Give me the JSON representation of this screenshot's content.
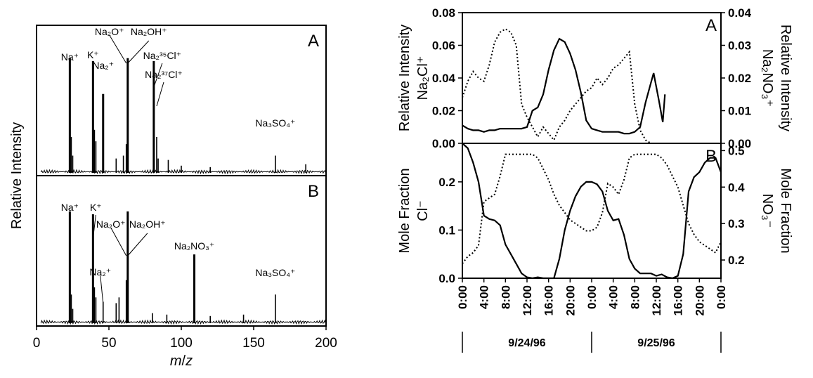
{
  "chart_data": [
    {
      "type": "line",
      "subtype": "mass-spectrum",
      "panels": [
        {
          "letter": "A",
          "peaks": [
            {
              "x": 23,
              "y": 0.8
            },
            {
              "x": 24,
              "y": 0.25
            },
            {
              "x": 25,
              "y": 0.12
            },
            {
              "x": 39,
              "y": 0.78
            },
            {
              "x": 40,
              "y": 0.3
            },
            {
              "x": 41,
              "y": 0.22
            },
            {
              "x": 46,
              "y": 0.55
            },
            {
              "x": 55,
              "y": 0.1
            },
            {
              "x": 60,
              "y": 0.12
            },
            {
              "x": 62,
              "y": 0.2
            },
            {
              "x": 63,
              "y": 0.8
            },
            {
              "x": 81,
              "y": 0.78
            },
            {
              "x": 83,
              "y": 0.25
            },
            {
              "x": 84,
              "y": 0.1
            },
            {
              "x": 91,
              "y": 0.09
            },
            {
              "x": 100,
              "y": 0.05
            },
            {
              "x": 120,
              "y": 0.04
            },
            {
              "x": 165,
              "y": 0.12
            },
            {
              "x": 186,
              "y": 0.06
            }
          ],
          "labels": [
            {
              "text": "Na⁺",
              "x": 23
            },
            {
              "text": "K⁺",
              "x": 39
            },
            {
              "text": "Na₂⁺",
              "x": 46
            },
            {
              "text": "Na₂O⁺",
              "x": 62
            },
            {
              "text": "Na₂OH⁺",
              "x": 63
            },
            {
              "text": "Na₂³⁵Cl⁺",
              "x": 81
            },
            {
              "text": "Na₂³⁷Cl⁺",
              "x": 83
            },
            {
              "text": "Na₃SO₄⁺",
              "x": 165
            }
          ]
        },
        {
          "letter": "B",
          "peaks": [
            {
              "x": 23,
              "y": 0.78
            },
            {
              "x": 24,
              "y": 0.2
            },
            {
              "x": 25,
              "y": 0.1
            },
            {
              "x": 39,
              "y": 0.76
            },
            {
              "x": 40,
              "y": 0.25
            },
            {
              "x": 41,
              "y": 0.18
            },
            {
              "x": 46,
              "y": 0.15
            },
            {
              "x": 55,
              "y": 0.14
            },
            {
              "x": 57,
              "y": 0.18
            },
            {
              "x": 62,
              "y": 0.3
            },
            {
              "x": 63,
              "y": 0.78
            },
            {
              "x": 80,
              "y": 0.07
            },
            {
              "x": 90,
              "y": 0.06
            },
            {
              "x": 109,
              "y": 0.48
            },
            {
              "x": 120,
              "y": 0.05
            },
            {
              "x": 143,
              "y": 0.06
            },
            {
              "x": 165,
              "y": 0.2
            }
          ],
          "labels": [
            {
              "text": "Na⁺",
              "x": 23
            },
            {
              "text": "K⁺",
              "x": 39
            },
            {
              "text": "Na₂O⁺",
              "x": 62
            },
            {
              "text": "Na₂OH⁺",
              "x": 63
            },
            {
              "text": "Na₂⁺",
              "x": 46
            },
            {
              "text": "Na₂NO₃⁺",
              "x": 109
            },
            {
              "text": "Na₃SO₄⁺",
              "x": 165
            }
          ]
        }
      ],
      "ylabel": "Relative Intensity",
      "xlim": [
        0,
        200
      ],
      "xticks": [
        "0",
        "50",
        "100",
        "150",
        "200"
      ],
      "xlabel_main": "m",
      "xlabel_sep": "/",
      "xlabel_end": "z"
    },
    {
      "type": "line",
      "subtype": "time-series",
      "x_unit": "hours since 0:00 on 9/24/96",
      "xlim": [
        0,
        48
      ],
      "xticks": [
        "0:00",
        "4:00",
        "8:00",
        "12:00",
        "16:00",
        "20:00",
        "0:00",
        "4:00",
        "8:00",
        "12:00",
        "16:00",
        "20:00",
        "0:00"
      ],
      "dates": [
        "9/24/96",
        "9/25/96"
      ],
      "panels": [
        {
          "letter": "A",
          "ylabel_left": "Relative Intensity",
          "ylabel_left_sub": "Na₂Cl⁺",
          "ylabel_right": "Relative Intensity",
          "ylabel_right_sub": "Na₂NO₃⁺",
          "ylim_left": [
            0,
            0.08
          ],
          "ylim_right": [
            0,
            0.04
          ],
          "yticks_left": [
            "0.00",
            "0.02",
            "0.04",
            "0.06",
            "0.08"
          ],
          "yticks_right": [
            "0.00",
            "0.01",
            "0.02",
            "0.03",
            "0.04"
          ],
          "series": [
            {
              "style": "solid",
              "axis": "left",
              "x": [
                0,
                1,
                2,
                3,
                4,
                5,
                6,
                7,
                8,
                9,
                10,
                11,
                12,
                13,
                14,
                15,
                16,
                17,
                18,
                19,
                20,
                21,
                22,
                23,
                24,
                25,
                26,
                27,
                28,
                29,
                30,
                31,
                32,
                33,
                34,
                35,
                35.5,
                36.5,
                37.2,
                37.6
              ],
              "y": [
                0.011,
                0.009,
                0.008,
                0.008,
                0.007,
                0.008,
                0.008,
                0.009,
                0.009,
                0.009,
                0.009,
                0.009,
                0.01,
                0.02,
                0.022,
                0.03,
                0.045,
                0.057,
                0.064,
                0.062,
                0.055,
                0.045,
                0.031,
                0.014,
                0.009,
                0.008,
                0.007,
                0.007,
                0.007,
                0.007,
                0.006,
                0.006,
                0.007,
                0.01,
                0.025,
                0.037,
                0.043,
                0.026,
                0.013,
                0.03
              ]
            },
            {
              "style": "dotted",
              "axis": "right",
              "x": [
                0,
                1,
                2,
                3,
                4,
                5,
                6,
                7,
                8,
                9,
                10,
                11,
                12,
                13,
                14,
                15,
                16,
                17,
                18,
                19,
                20,
                21,
                22,
                23,
                24,
                25,
                26,
                27,
                28,
                29,
                30,
                31,
                32,
                33,
                34,
                35,
                35.5
              ],
              "y": [
                0.014,
                0.019,
                0.022,
                0.02,
                0.019,
                0.024,
                0.031,
                0.034,
                0.035,
                0.034,
                0.03,
                0.012,
                0.008,
                0.005,
                0.002,
                0.005,
                0.003,
                0.001,
                0.005,
                0.007,
                0.01,
                0.012,
                0.014,
                0.016,
                0.017,
                0.02,
                0.018,
                0.02,
                0.023,
                0.024,
                0.026,
                0.028,
                0.012,
                0.004,
                0.001,
                0.0,
                0.0
              ]
            }
          ]
        },
        {
          "letter": "B",
          "ylabel_left": "Mole Fraction",
          "ylabel_left_sub": "Cl⁻",
          "ylabel_right": "Mole Fraction",
          "ylabel_right_sub": "NO₃⁻",
          "ylim_left": [
            0,
            0.28
          ],
          "ylim_right": [
            0.15,
            0.52
          ],
          "yticks_left": [
            "0.0",
            "0.1",
            "0.2"
          ],
          "yticks_right": [
            "0.2",
            "0.3",
            "0.4",
            "0.5"
          ],
          "series": [
            {
              "style": "solid",
              "axis": "left",
              "x": [
                0,
                1,
                2,
                3,
                4,
                5,
                6,
                7,
                8,
                9,
                10,
                11,
                12,
                13,
                14,
                15,
                16,
                17,
                18,
                19,
                20,
                21,
                22,
                23,
                24,
                25,
                26,
                27,
                28,
                29,
                30,
                31,
                32,
                33,
                34,
                35,
                36,
                37,
                38,
                39,
                40,
                41,
                42,
                43,
                44,
                45,
                46,
                47,
                48
              ],
              "y": [
                0.28,
                0.27,
                0.24,
                0.2,
                0.13,
                0.123,
                0.12,
                0.11,
                0.07,
                0.05,
                0.03,
                0.01,
                0.002,
                0.0,
                0.002,
                0.0,
                0.0,
                0.0,
                0.04,
                0.1,
                0.14,
                0.17,
                0.19,
                0.2,
                0.2,
                0.195,
                0.18,
                0.14,
                0.12,
                0.123,
                0.09,
                0.04,
                0.02,
                0.01,
                0.01,
                0.01,
                0.005,
                0.008,
                0.002,
                0.0,
                0.005,
                0.05,
                0.18,
                0.21,
                0.22,
                0.24,
                0.25,
                0.25,
                0.22
              ]
            },
            {
              "style": "dotted",
              "axis": "right",
              "x": [
                0,
                1,
                2,
                3,
                4,
                5,
                6,
                7,
                8,
                9,
                10,
                11,
                12,
                13,
                14,
                15,
                16,
                17,
                18,
                19,
                20,
                21,
                22,
                23,
                24,
                25,
                26,
                27,
                28,
                29,
                30,
                31,
                32,
                33,
                34,
                35,
                36,
                37,
                38,
                39,
                40,
                41,
                42,
                43,
                44,
                45,
                46,
                47,
                48
              ],
              "y": [
                0.19,
                0.21,
                0.22,
                0.24,
                0.36,
                0.37,
                0.38,
                0.43,
                0.49,
                0.49,
                0.49,
                0.49,
                0.49,
                0.49,
                0.48,
                0.45,
                0.42,
                0.38,
                0.35,
                0.33,
                0.31,
                0.3,
                0.29,
                0.28,
                0.28,
                0.29,
                0.33,
                0.41,
                0.4,
                0.38,
                0.42,
                0.48,
                0.49,
                0.49,
                0.49,
                0.49,
                0.49,
                0.48,
                0.46,
                0.43,
                0.4,
                0.35,
                0.3,
                0.27,
                0.25,
                0.24,
                0.23,
                0.22,
                0.25
              ]
            }
          ]
        }
      ]
    }
  ]
}
